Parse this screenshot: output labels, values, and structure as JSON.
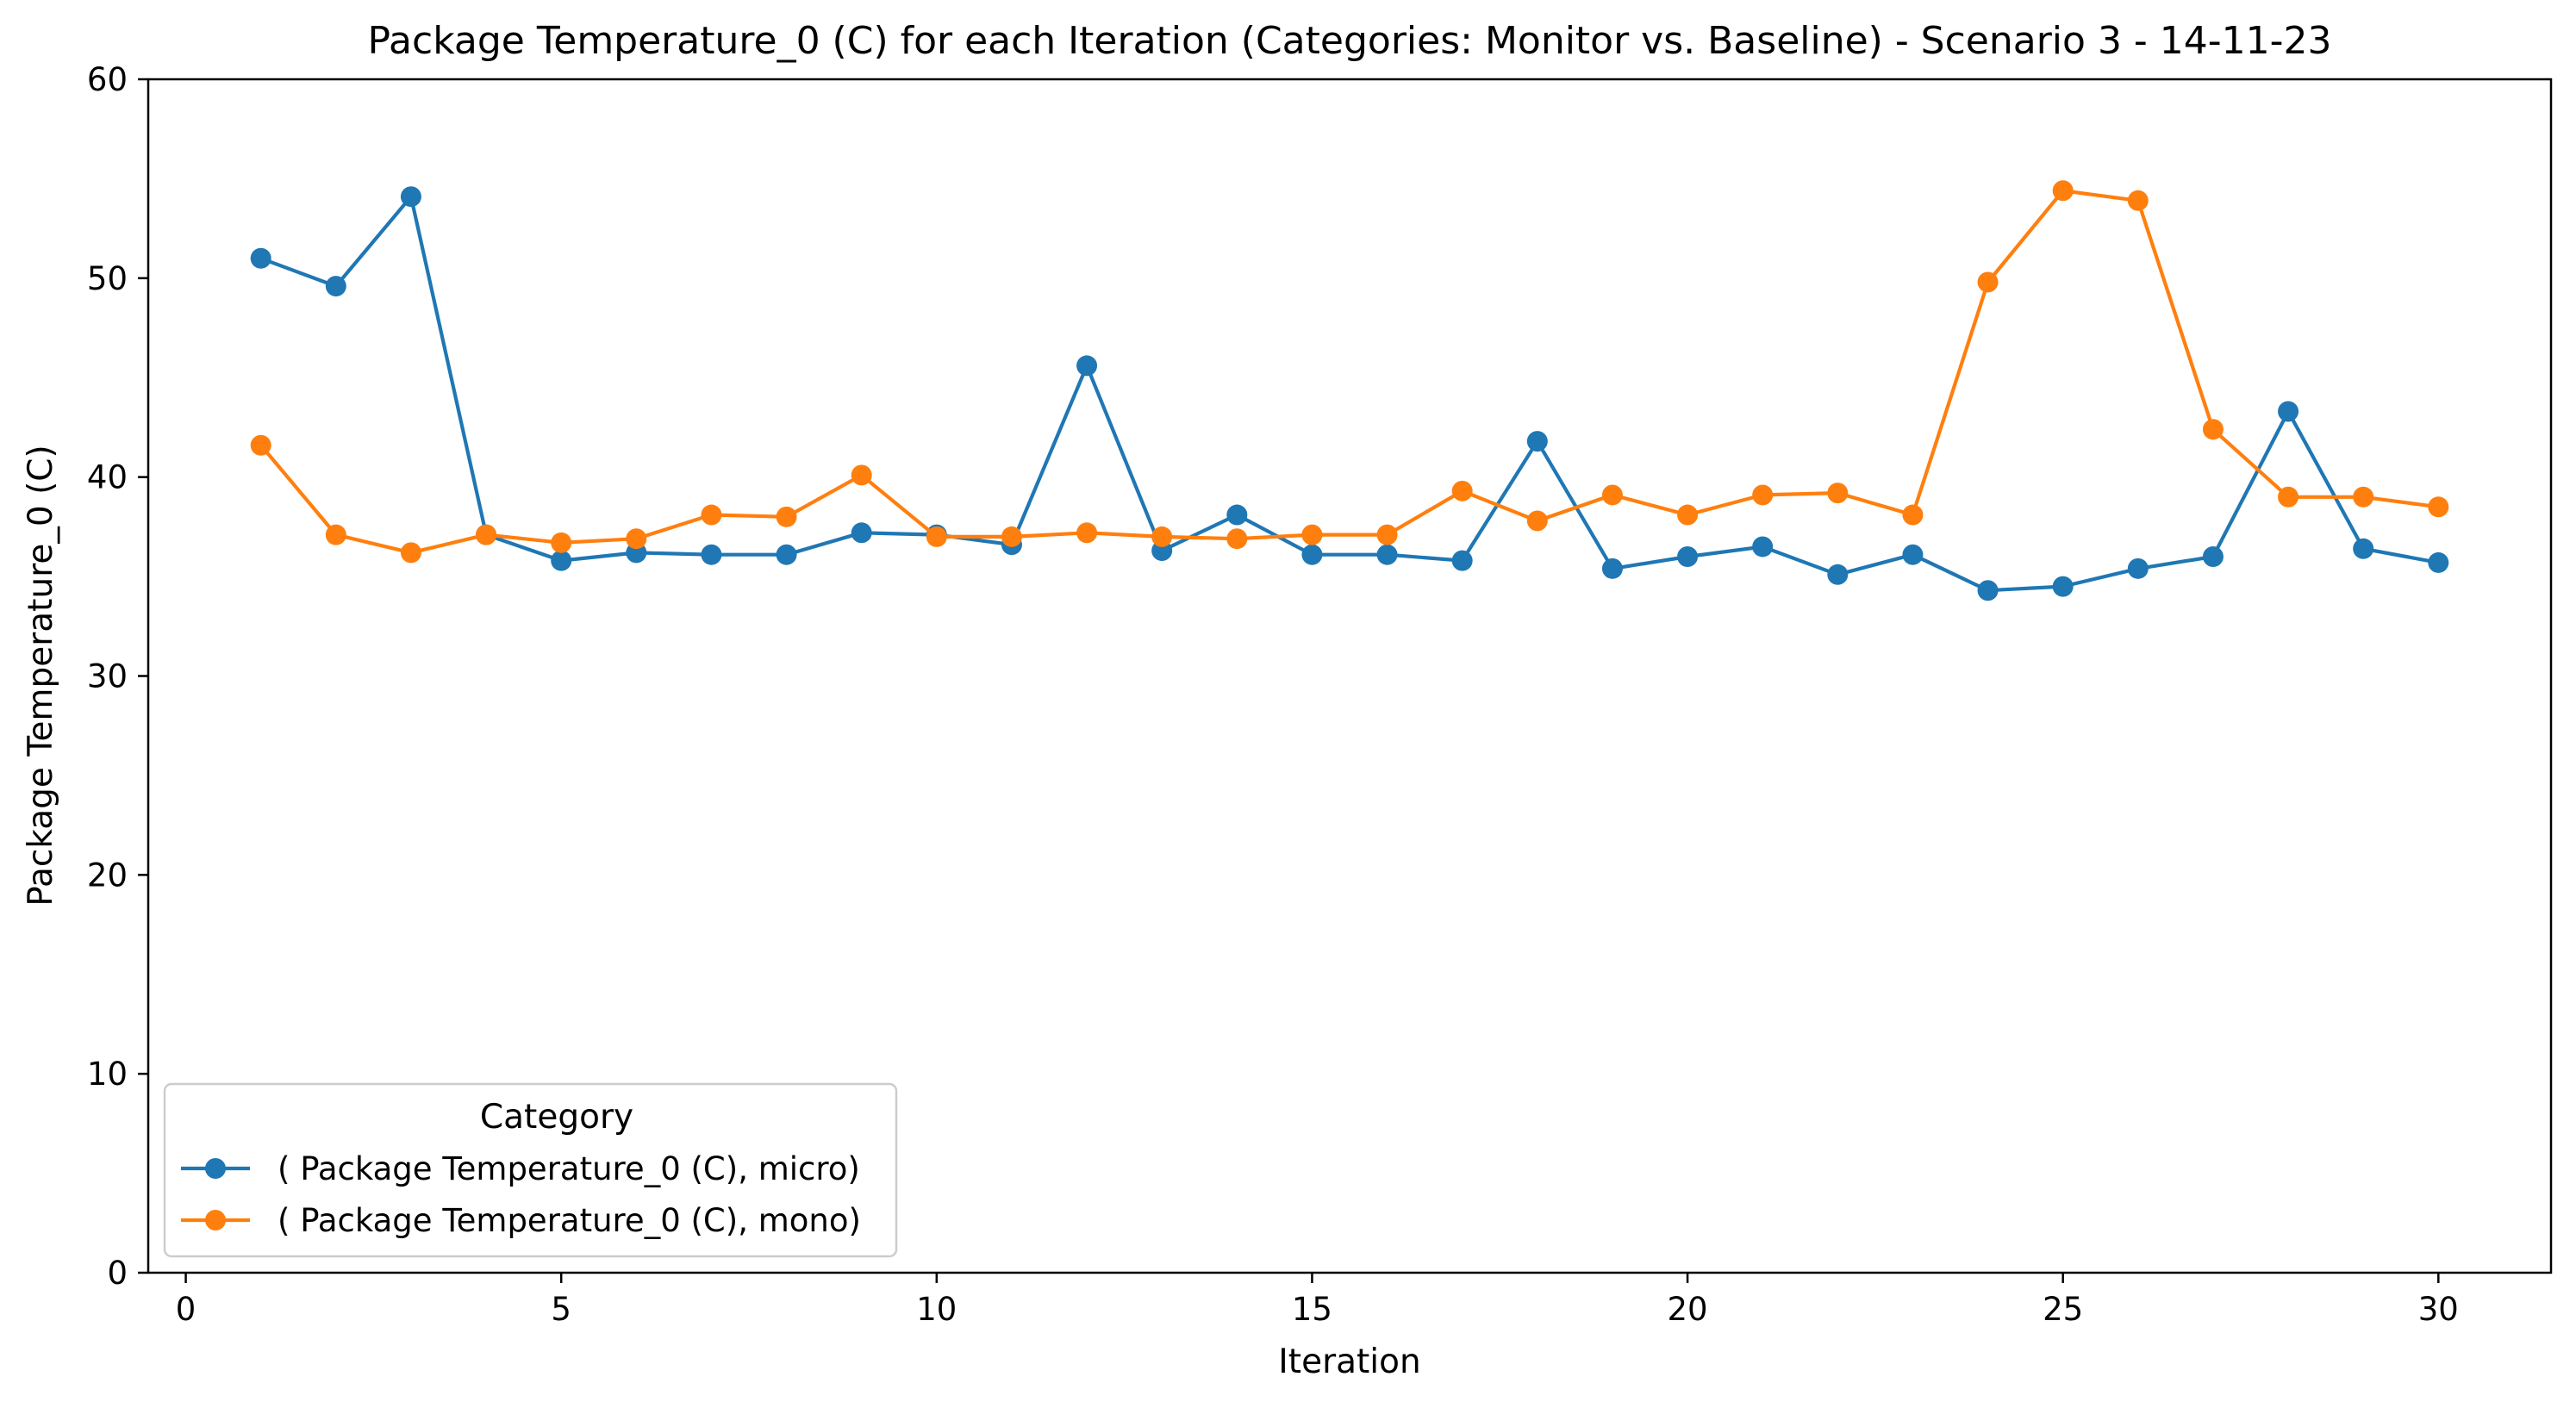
{
  "chart_data": {
    "type": "line",
    "title": "Package Temperature_0 (C) for each Iteration (Categories: Monitor vs. Baseline) - Scenario 3 - 14-11-23",
    "xlabel": "Iteration",
    "ylabel": "Package Temperature_0 (C)",
    "xlim": [
      -0.5,
      31.5
    ],
    "ylim": [
      0,
      60
    ],
    "xticks": [
      0,
      5,
      10,
      15,
      20,
      25,
      30
    ],
    "yticks": [
      0,
      10,
      20,
      30,
      40,
      50,
      60
    ],
    "grid": false,
    "legend": {
      "title": "Category",
      "location": "lower-left"
    },
    "x": [
      1,
      2,
      3,
      4,
      5,
      6,
      7,
      8,
      9,
      10,
      11,
      12,
      13,
      14,
      15,
      16,
      17,
      18,
      19,
      20,
      21,
      22,
      23,
      24,
      25,
      26,
      27,
      28,
      29,
      30
    ],
    "series": [
      {
        "name": "( Package Temperature_0 (C), micro)",
        "color": "#1f77b4",
        "marker": "circle",
        "values": [
          51.0,
          49.6,
          54.1,
          37.1,
          35.8,
          36.2,
          36.1,
          36.1,
          37.2,
          37.1,
          36.6,
          45.6,
          36.3,
          38.1,
          36.1,
          36.1,
          35.8,
          41.8,
          35.4,
          36.0,
          36.5,
          35.1,
          36.1,
          34.3,
          34.5,
          35.4,
          36.0,
          43.3,
          36.4,
          35.7
        ]
      },
      {
        "name": "( Package Temperature_0 (C), mono)",
        "color": "#ff7f0e",
        "marker": "circle",
        "values": [
          41.6,
          37.1,
          36.2,
          37.1,
          36.7,
          36.9,
          38.1,
          38.0,
          40.1,
          37.0,
          37.0,
          37.2,
          37.0,
          36.9,
          37.1,
          37.1,
          39.3,
          37.8,
          39.1,
          38.1,
          39.1,
          39.2,
          38.1,
          49.8,
          54.4,
          53.9,
          42.4,
          39.0,
          39.0,
          38.5
        ]
      }
    ]
  }
}
